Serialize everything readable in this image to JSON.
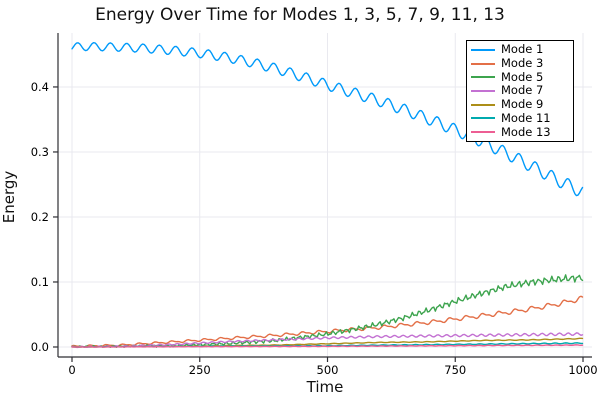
{
  "chart_data": {
    "type": "line",
    "title": "Energy Over Time for Modes 1, 3, 5, 7, 9, 11, 13",
    "xlabel": "Time",
    "ylabel": "Energy",
    "xlim": [
      -27.4,
      1017.6
    ],
    "ylim": [
      -0.0154,
      0.483
    ],
    "xticks": [
      0,
      250,
      500,
      750,
      1000
    ],
    "xtick_labels": [
      "0",
      "250",
      "500",
      "750",
      "1000"
    ],
    "yticks": [
      0.0,
      0.1,
      0.2,
      0.3,
      0.4
    ],
    "ytick_labels": [
      "0.0",
      "0.1",
      "0.2",
      "0.3",
      "0.4"
    ],
    "grid": true,
    "legend_position": "top-right",
    "colors": {
      "background": "#ffffff",
      "axis": "#2e2e33",
      "grid": "#e9e9ef",
      "text": "#000000"
    },
    "series": [
      {
        "name": "Mode 1",
        "color": "#009AFA",
        "trend": [
          [
            0,
            0.462
          ],
          [
            50,
            0.462
          ],
          [
            100,
            0.461
          ],
          [
            150,
            0.459
          ],
          [
            200,
            0.456
          ],
          [
            250,
            0.452
          ],
          [
            300,
            0.446
          ],
          [
            350,
            0.438
          ],
          [
            400,
            0.428
          ],
          [
            450,
            0.416
          ],
          [
            500,
            0.403
          ],
          [
            550,
            0.391
          ],
          [
            600,
            0.379
          ],
          [
            650,
            0.365
          ],
          [
            700,
            0.35
          ],
          [
            750,
            0.334
          ],
          [
            800,
            0.317
          ],
          [
            850,
            0.298
          ],
          [
            900,
            0.278
          ],
          [
            950,
            0.257
          ],
          [
            1000,
            0.238
          ]
        ],
        "osc": [
          {
            "amp": [
              0.006,
              0.01
            ],
            "period": 32,
            "phase": -0.6
          }
        ]
      },
      {
        "name": "Mode 3",
        "color": "#E36F47",
        "trend": [
          [
            0,
            0.001
          ],
          [
            100,
            0.003
          ],
          [
            200,
            0.008
          ],
          [
            300,
            0.013
          ],
          [
            400,
            0.018
          ],
          [
            500,
            0.024
          ],
          [
            600,
            0.03
          ],
          [
            700,
            0.038
          ],
          [
            750,
            0.043
          ],
          [
            800,
            0.048
          ],
          [
            850,
            0.053
          ],
          [
            900,
            0.059
          ],
          [
            950,
            0.066
          ],
          [
            1000,
            0.075
          ]
        ],
        "osc": [
          {
            "amp": [
              0.001,
              0.003
            ],
            "period": 32,
            "phase": 0.5
          },
          {
            "amp": [
              0.0005,
              0.0015
            ],
            "period": 16,
            "phase": 1.0
          }
        ]
      },
      {
        "name": "Mode 5",
        "color": "#3DA44E",
        "trend": [
          [
            0,
            0.0005
          ],
          [
            100,
            0.001
          ],
          [
            200,
            0.002
          ],
          [
            300,
            0.005
          ],
          [
            400,
            0.01
          ],
          [
            500,
            0.02
          ],
          [
            550,
            0.027
          ],
          [
            600,
            0.035
          ],
          [
            650,
            0.045
          ],
          [
            700,
            0.057
          ],
          [
            750,
            0.07
          ],
          [
            800,
            0.082
          ],
          [
            850,
            0.093
          ],
          [
            900,
            0.1
          ],
          [
            950,
            0.104
          ],
          [
            1000,
            0.107
          ]
        ],
        "osc": [
          {
            "amp": [
              0.0008,
              0.004
            ],
            "period": 13,
            "phase": 0.0
          },
          {
            "amp": [
              0.0004,
              0.0025
            ],
            "period": 7,
            "phase": 1.3
          }
        ]
      },
      {
        "name": "Mode 7",
        "color": "#C371D2",
        "trend": [
          [
            0,
            0.0
          ],
          [
            100,
            0.001
          ],
          [
            200,
            0.004
          ],
          [
            300,
            0.008
          ],
          [
            400,
            0.011
          ],
          [
            500,
            0.014
          ],
          [
            600,
            0.016
          ],
          [
            700,
            0.017
          ],
          [
            800,
            0.018
          ],
          [
            900,
            0.019
          ],
          [
            1000,
            0.02
          ]
        ],
        "osc": [
          {
            "amp": [
              0.0008,
              0.002
            ],
            "period": 17,
            "phase": 0.8
          }
        ]
      },
      {
        "name": "Mode 9",
        "color": "#AC8E18",
        "trend": [
          [
            0,
            0.0
          ],
          [
            200,
            0.001
          ],
          [
            400,
            0.003
          ],
          [
            500,
            0.005
          ],
          [
            600,
            0.007
          ],
          [
            700,
            0.008
          ],
          [
            800,
            0.01
          ],
          [
            900,
            0.011
          ],
          [
            1000,
            0.013
          ]
        ],
        "osc": [
          {
            "amp": [
              0.0002,
              0.0005
            ],
            "period": 23,
            "phase": 0.2
          }
        ]
      },
      {
        "name": "Mode 11",
        "color": "#00AAAE",
        "trend": [
          [
            0,
            0.0
          ],
          [
            250,
            0.001
          ],
          [
            500,
            0.002
          ],
          [
            750,
            0.004
          ],
          [
            1000,
            0.006
          ]
        ],
        "osc": [
          {
            "amp": [
              0.0002,
              0.0006
            ],
            "period": 21,
            "phase": 1.5
          }
        ]
      },
      {
        "name": "Mode 13",
        "color": "#ED5E93",
        "trend": [
          [
            0,
            0.0
          ],
          [
            250,
            0.0005
          ],
          [
            500,
            0.001
          ],
          [
            750,
            0.002
          ],
          [
            1000,
            0.003
          ]
        ],
        "osc": [
          {
            "amp": [
              0.0002,
              0.0004
            ],
            "period": 19,
            "phase": 2.2
          }
        ]
      }
    ]
  }
}
